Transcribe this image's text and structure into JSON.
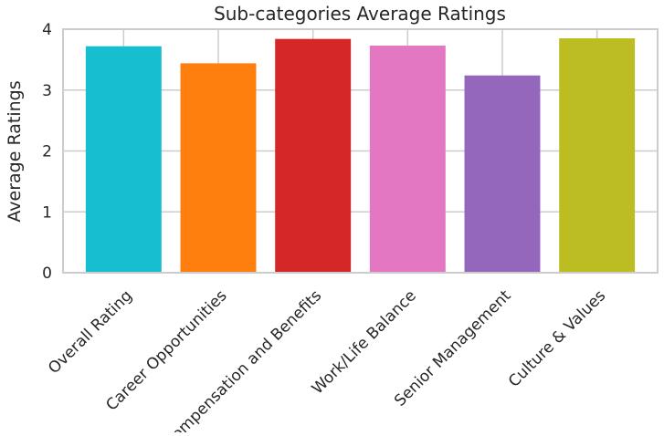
{
  "chart_data": {
    "type": "bar",
    "title": "Sub-categories Average Ratings",
    "xlabel": "",
    "ylabel": "Average Ratings",
    "categories": [
      "Overall Rating",
      "Career Opportunities",
      "Compensation and Benefits",
      "Work/Life Balance",
      "Senior Management",
      "Culture & Values"
    ],
    "values": [
      3.72,
      3.44,
      3.84,
      3.73,
      3.24,
      3.85
    ],
    "colors": [
      "#17becf",
      "#ff7f0e",
      "#d62728",
      "#e377c2",
      "#9467bd",
      "#bcbd22"
    ],
    "ylim": [
      0,
      4
    ],
    "yticks": [
      0,
      1,
      2,
      3,
      4
    ],
    "grid": true,
    "legend": false
  }
}
